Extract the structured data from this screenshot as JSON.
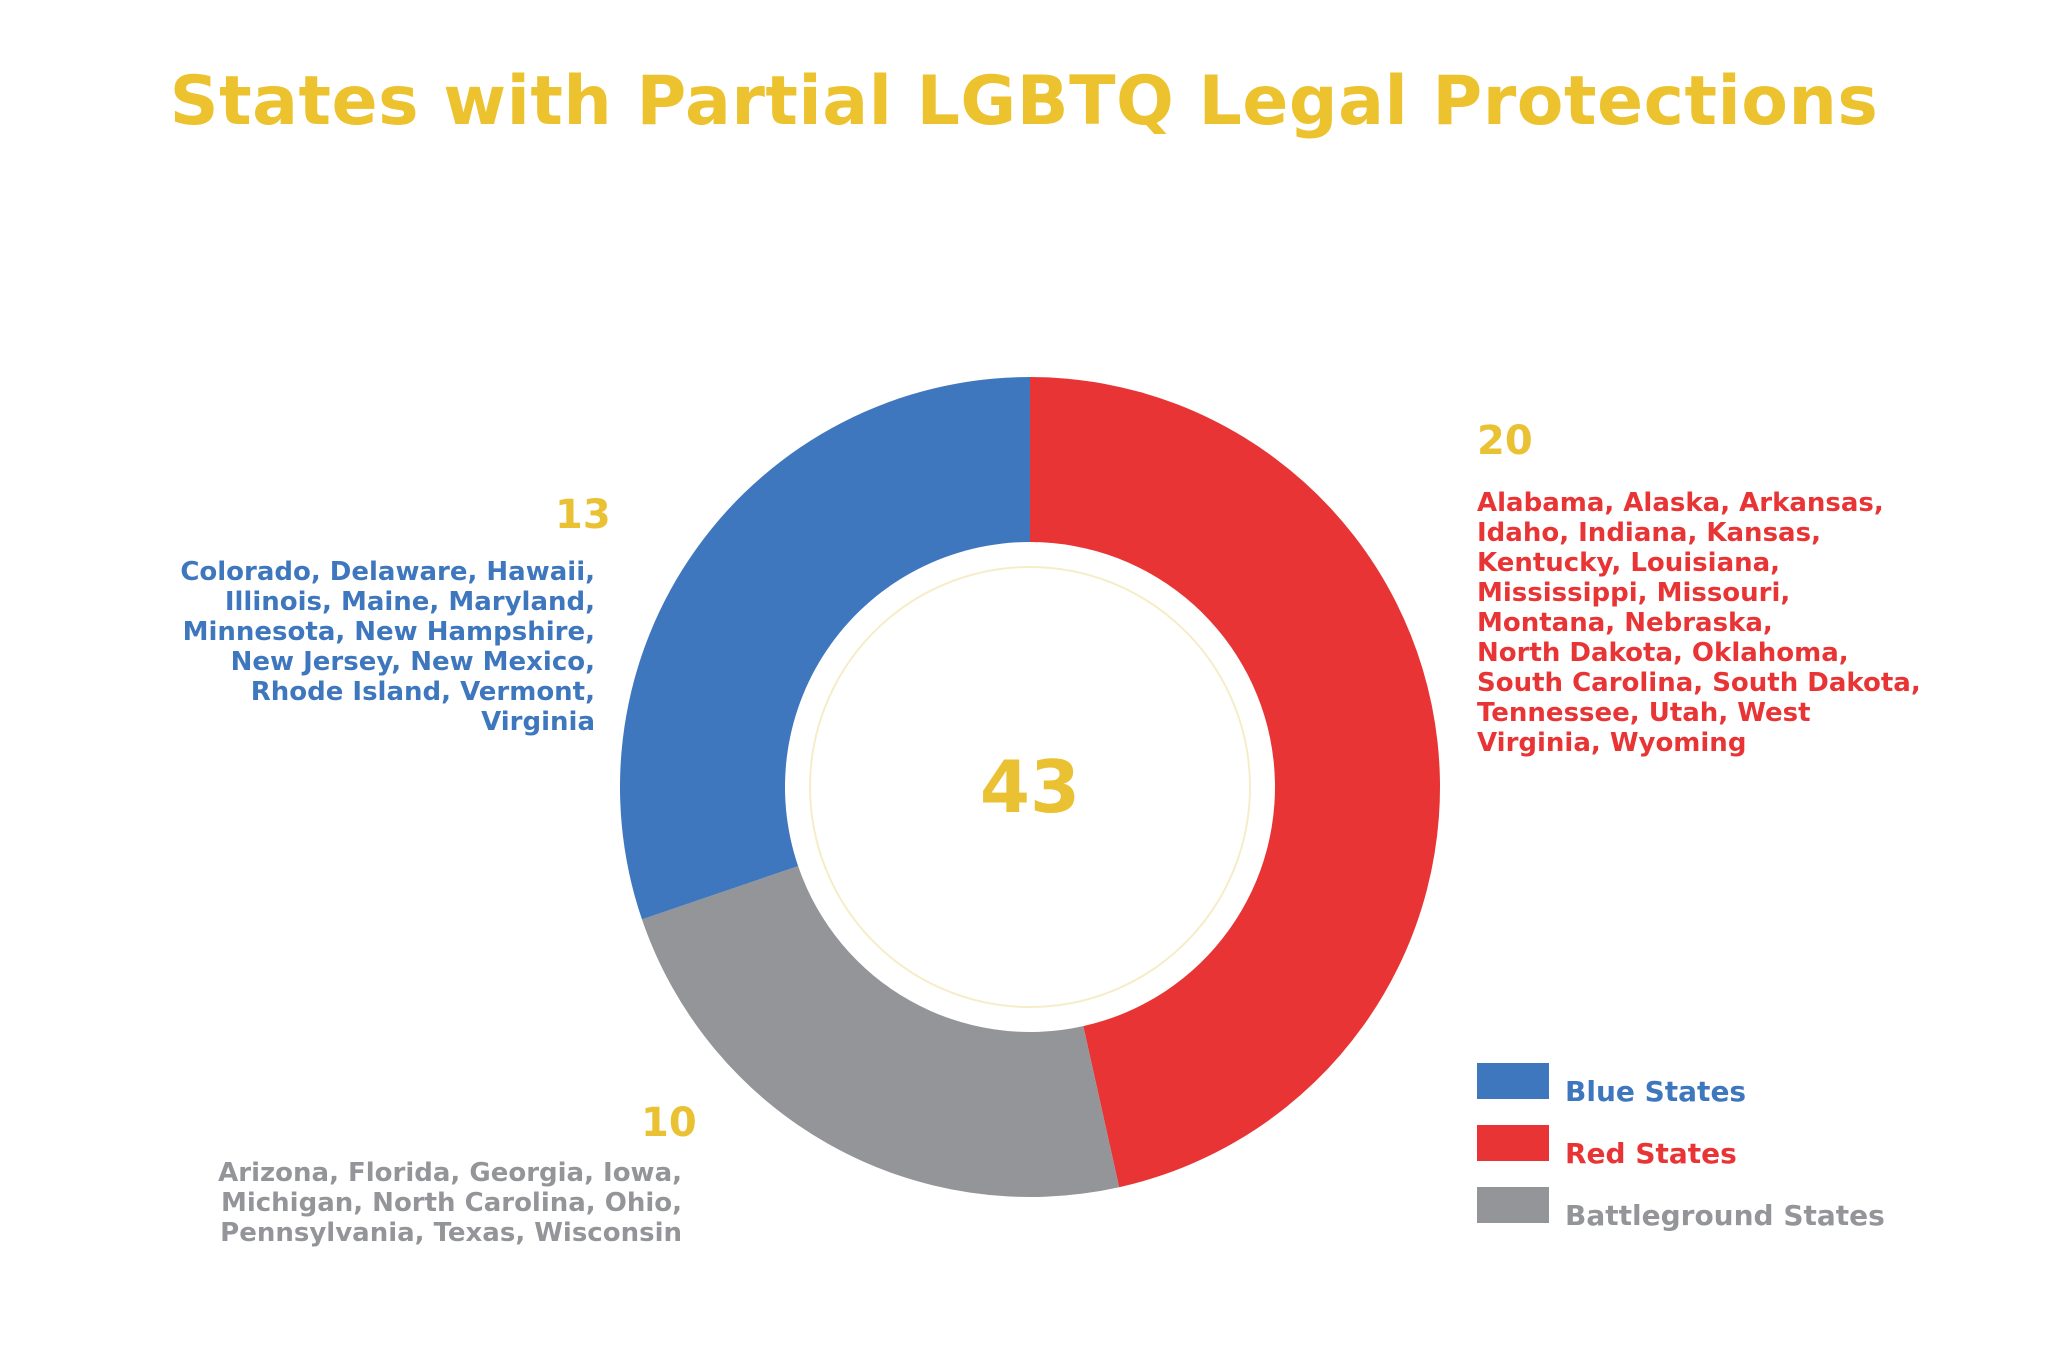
{
  "chart_data": {
    "type": "pie",
    "title": "States with Partial LGBTQ Legal Protections",
    "total_label": "43",
    "categories": [
      "Red States",
      "Battleground States",
      "Blue States"
    ],
    "values": [
      20,
      10,
      13
    ],
    "colors": [
      "#E83435",
      "#939598",
      "#3E77BD"
    ],
    "legend_position": "bottom-right",
    "slices": {
      "blue": {
        "count": "13",
        "states": [
          "Colorado, Delaware, Hawaii,",
          "Illinois, Maine, Maryland,",
          "Minnesota, New Hampshire,",
          "New Jersey, New Mexico,",
          "Rhode Island, Vermont,",
          "Virginia"
        ]
      },
      "red": {
        "count": "20",
        "states": [
          "Alabama, Alaska, Arkansas,",
          "Idaho, Indiana, Kansas,",
          "Kentucky, Louisiana,",
          "Mississippi, Missouri,",
          "Montana, Nebraska,",
          "North Dakota, Oklahoma,",
          "South Carolina, South Dakota,",
          "Tennessee, Utah, West",
          "Virginia, Wyoming"
        ]
      },
      "gray": {
        "count": "10",
        "states": [
          "Arizona, Florida, Georgia, Iowa,",
          "Michigan, North Carolina, Ohio,",
          "Pennsylvania, Texas, Wisconsin"
        ]
      }
    },
    "legend": [
      {
        "label": "Blue States",
        "color": "#3E77BD"
      },
      {
        "label": "Red States",
        "color": "#E83435"
      },
      {
        "label": "Battleground States",
        "color": "#939598"
      }
    ]
  }
}
